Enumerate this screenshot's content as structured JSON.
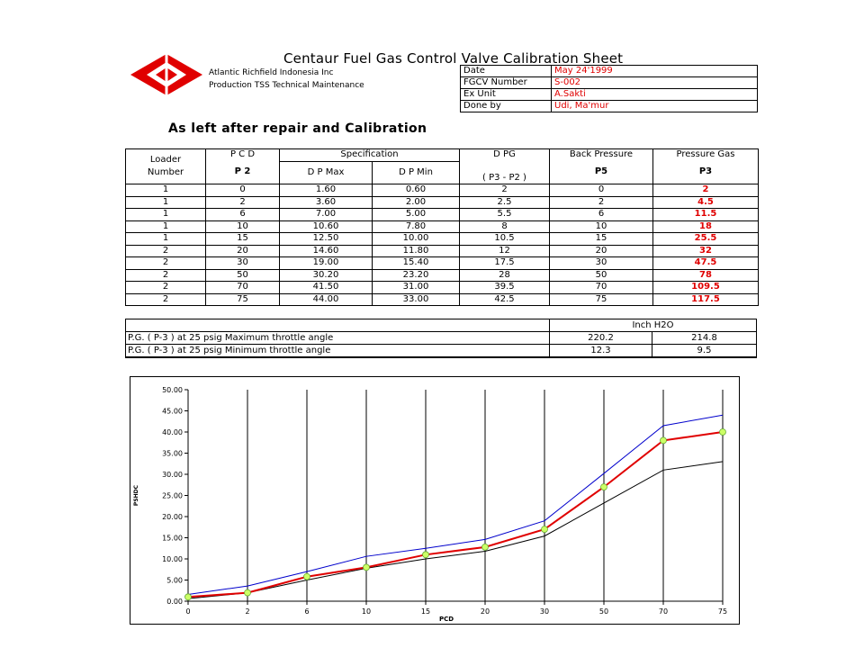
{
  "header": {
    "title": "Centaur Fuel Gas Control Valve Calibration Sheet",
    "company_line1": "Atlantic Richfield Indonesia Inc",
    "company_line2": "Production TSS Technical Maintenance",
    "info": [
      {
        "label": "Date",
        "value": "May 24'1999"
      },
      {
        "label": "FGCV Number",
        "value": "S-002"
      },
      {
        "label": "Ex Unit",
        "value": "A.Sakti"
      },
      {
        "label": "Done by",
        "value": "Udi, Ma'mur"
      }
    ],
    "subtitle": "As left after repair and Calibration"
  },
  "table": {
    "headers": {
      "loader": "Loader",
      "number": "Number",
      "pcd": "P C D",
      "p2": "P 2",
      "specification": "Specification",
      "dp_max": "D P Max",
      "dp_min": "D P Min",
      "dpg": "D PG",
      "dpg_formula": "( P3 - P2 )",
      "back_pressure": "Back Pressure",
      "p5": "P5",
      "pressure_gas": "Pressure Gas",
      "p3": "P3"
    },
    "rows": [
      [
        "1",
        "0",
        "1.60",
        "0.60",
        "2",
        "0",
        "2"
      ],
      [
        "1",
        "2",
        "3.60",
        "2.00",
        "2.5",
        "2",
        "4.5"
      ],
      [
        "1",
        "6",
        "7.00",
        "5.00",
        "5.5",
        "6",
        "11.5"
      ],
      [
        "1",
        "10",
        "10.60",
        "7.80",
        "8",
        "10",
        "18"
      ],
      [
        "1",
        "15",
        "12.50",
        "10.00",
        "10.5",
        "15",
        "25.5"
      ],
      [
        "2",
        "20",
        "14.60",
        "11.80",
        "12",
        "20",
        "32"
      ],
      [
        "2",
        "30",
        "19.00",
        "15.40",
        "17.5",
        "30",
        "47.5"
      ],
      [
        "2",
        "50",
        "30.20",
        "23.20",
        "28",
        "50",
        "78"
      ],
      [
        "2",
        "70",
        "41.50",
        "31.00",
        "39.5",
        "70",
        "109.5"
      ],
      [
        "2",
        "75",
        "44.00",
        "33.00",
        "42.5",
        "75",
        "117.5"
      ]
    ]
  },
  "pg_table": {
    "unit": "Inch H2O",
    "rows": [
      {
        "label": "P.G.  ( P-3 ) at 25 psig Maximum throttle angle",
        "v1": "220.2",
        "v2": "214.8"
      },
      {
        "label": "P.G.  ( P-3 ) at 25 psig Minimum throttle angle",
        "v1": "12.3",
        "v2": "9.5"
      }
    ]
  },
  "chart_data": {
    "type": "line",
    "categories": [
      "0",
      "2",
      "6",
      "10",
      "15",
      "20",
      "30",
      "50",
      "70",
      "75"
    ],
    "xlabel": "PCD",
    "ylabel": "PSHDC",
    "ylim": [
      0,
      50
    ],
    "yticks": [
      "0.00",
      "5.00",
      "10.00",
      "15.00",
      "20.00",
      "25.00",
      "30.00",
      "35.00",
      "40.00",
      "45.00",
      "50.00"
    ],
    "grid": "vertical",
    "series": [
      {
        "values": [
          1.6,
          3.6,
          7.0,
          10.6,
          12.5,
          14.6,
          19.0,
          30.2,
          41.5,
          44.0
        ],
        "color": "#0000cc",
        "markers": false
      },
      {
        "values": [
          0.6,
          2.0,
          5.0,
          7.8,
          10.0,
          11.8,
          15.4,
          23.2,
          31.0,
          33.0
        ],
        "color": "#000000",
        "markers": false
      },
      {
        "values": [
          1.0,
          2.0,
          5.8,
          8.0,
          11.0,
          12.8,
          17.0,
          27.0,
          38.0,
          40.0
        ],
        "color": "#e00000",
        "markers": true,
        "marker_color": "#ccff66"
      }
    ]
  }
}
